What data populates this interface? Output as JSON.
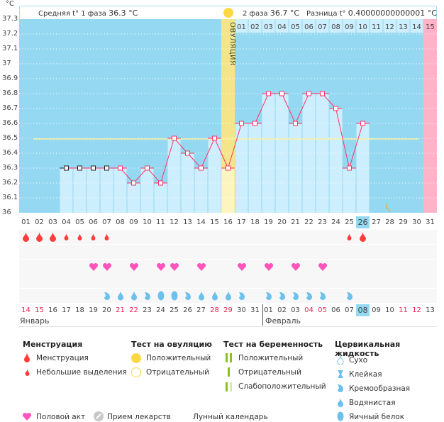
{
  "y_unit": "°C",
  "header": {
    "phase1_label": "Средняя t° 1 фаза",
    "phase1_value": "36.3 °C",
    "phase2_label": "2 фаза",
    "phase2_value": "36.7 °C",
    "diff_label": "Разница t°",
    "diff_value": "0.40000000000001 °C",
    "ovulation_label": "ОВУЛЯЦИЯ"
  },
  "next_cycle_days": [
    "01",
    "02",
    "03",
    "04",
    "05",
    "06",
    "07",
    "08",
    "09",
    "10",
    "11",
    "12",
    "13",
    "14",
    "15"
  ],
  "y_ticks": [
    "37.3",
    "37.2",
    "37.1",
    "37",
    "36.9",
    "36.8",
    "36.7",
    "36.6",
    "36.5",
    "36.4",
    "36.3",
    "36.2",
    "36.1",
    "36"
  ],
  "chart_data": {
    "type": "line",
    "ylim": [
      36.0,
      37.3
    ],
    "cycle_days": [
      "01",
      "02",
      "03",
      "04",
      "05",
      "06",
      "07",
      "08",
      "09",
      "10",
      "11",
      "12",
      "13",
      "14",
      "15",
      "16",
      "17",
      "18",
      "19",
      "20",
      "21",
      "22",
      "23",
      "24",
      "25",
      "26",
      "27",
      "28",
      "29",
      "30",
      "31"
    ],
    "temperatures": [
      null,
      null,
      null,
      36.3,
      36.3,
      36.3,
      36.3,
      36.3,
      36.2,
      36.3,
      36.2,
      36.5,
      36.4,
      36.3,
      36.5,
      36.3,
      36.6,
      36.6,
      36.8,
      36.8,
      36.6,
      36.8,
      36.8,
      36.7,
      36.3,
      36.6,
      null,
      null,
      null,
      null,
      null
    ],
    "coverline": 36.5,
    "ovulation_day": 16,
    "current_day": 26,
    "predicted_period_day": 31,
    "moon_day": 28
  },
  "dates": [
    "14",
    "15",
    "16",
    "17",
    "18",
    "19",
    "20",
    "21",
    "22",
    "23",
    "24",
    "25",
    "26",
    "27",
    "28",
    "29",
    "30",
    "31",
    "01",
    "02",
    "03",
    "04",
    "05",
    "06",
    "07",
    "08",
    "09",
    "10",
    "11",
    "12",
    "13"
  ],
  "weekend_dates": [
    0,
    1,
    7,
    8,
    14,
    15,
    21,
    22,
    28,
    29
  ],
  "months": {
    "jan": "Январь",
    "feb": "Февраль"
  },
  "menstruation": {
    "1": "heavy",
    "2": "heavy",
    "3": "heavy",
    "4": "light",
    "5": "light",
    "6": "light",
    "7": "light",
    "25": "light",
    "26": "heavy"
  },
  "intercourse_days": [
    6,
    7,
    9,
    11,
    12,
    14,
    17,
    19,
    21,
    23
  ],
  "cervical_fluid": {
    "7": "creamy",
    "8": "watery",
    "9": "watery",
    "10": "creamy",
    "11": "eggwhite",
    "12": "eggwhite",
    "13": "creamy",
    "14": "watery",
    "15": "watery",
    "16": "watery",
    "17": "creamy",
    "19": "creamy",
    "20": "creamy",
    "21": "creamy",
    "22": "creamy",
    "23": "creamy",
    "25": "creamy"
  },
  "colors": {
    "plot_bg": "#94d8f2",
    "bar": "#cdeefc",
    "ovulation": "#f5e58a",
    "period": "#ffb3c8",
    "line": "#ff3366",
    "coverline": "#f7f0a0",
    "blood": "#ff3b3b",
    "heart": "#ff55bb",
    "fluid": "#6cc0ec"
  },
  "legend": {
    "menstruation": {
      "title": "Менструация",
      "items": [
        "Менструация",
        "Небольшие выделения"
      ]
    },
    "ovulation_test": {
      "title": "Тест на овуляцию",
      "items": [
        "Положительный",
        "Отрицательный"
      ]
    },
    "pregnancy_test": {
      "title": "Тест на беременность",
      "items": [
        "Положительный",
        "Отрицательный",
        "Слабоположительный"
      ]
    },
    "cervical": {
      "title": "Цервикальная жидкость",
      "items": [
        "Сухо",
        "Клейкая",
        "Кремообразная",
        "Водянистая",
        "Яичный белок"
      ]
    },
    "other": [
      "Половой акт",
      "Прием лекарств",
      "Лунный календарь"
    ]
  }
}
